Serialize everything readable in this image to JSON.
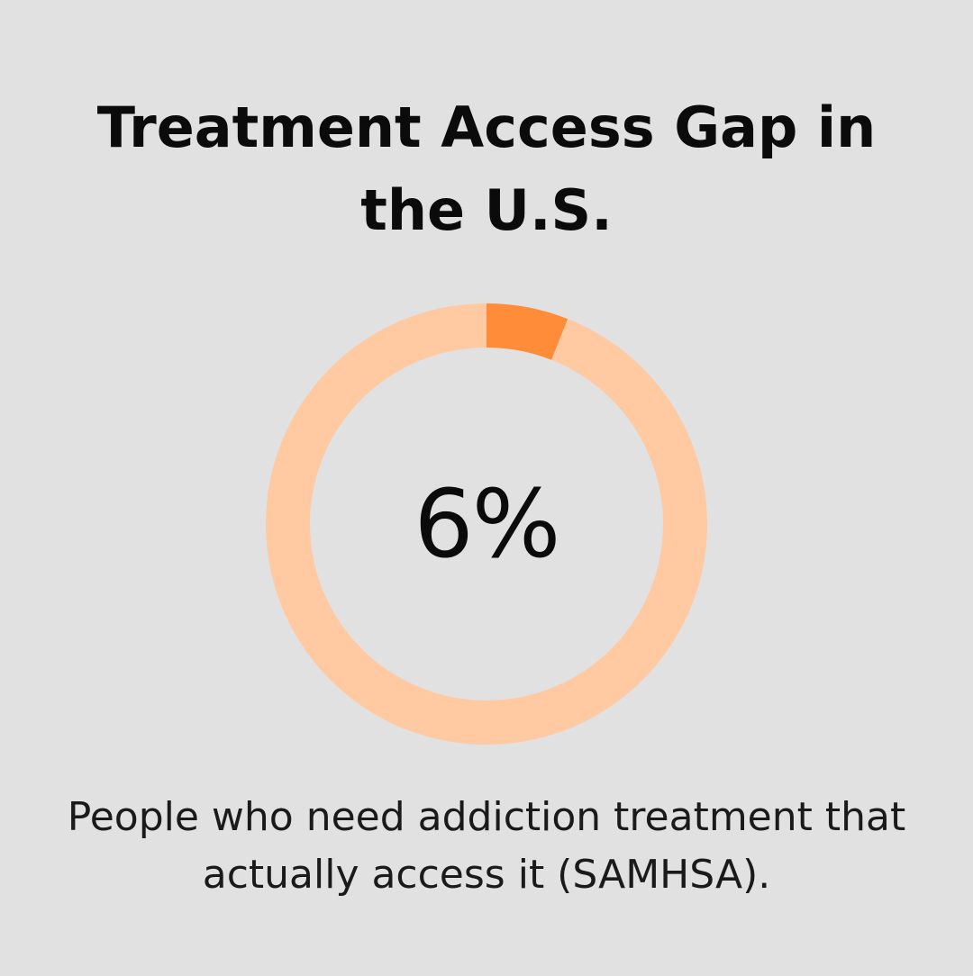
{
  "title": "Treatment Access Gap in the U.S.",
  "caption": "People who need addiction treatment that actually access it (SAMHSA).",
  "chart_data": {
    "type": "pie",
    "variant": "donut",
    "center_label": "6%",
    "slices": [
      {
        "value": 6,
        "color": "#ff8c38"
      },
      {
        "value": 94,
        "color": "#ffc9a2"
      }
    ],
    "start_angle": "top",
    "direction": "clockwise"
  }
}
